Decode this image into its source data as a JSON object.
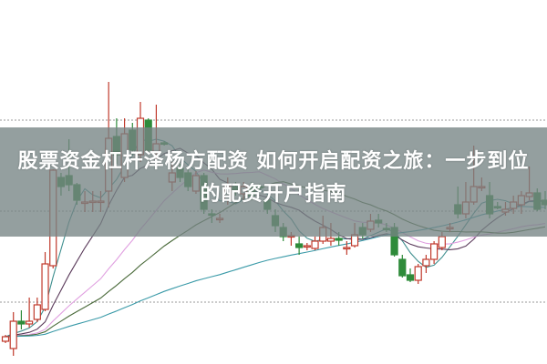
{
  "title": "股票资金杠杆泽杨方配资 如何开启配资之旅：一步到位的配资开户指南",
  "colors": {
    "up": "#c0392b",
    "down": "#2e8b3a",
    "grid": "#9a9a9a",
    "banner": "#768484"
  },
  "chart_data": {
    "type": "candlestick",
    "title": "",
    "xlabel": "",
    "ylabel": "",
    "grid": "horizontal dotted",
    "ylim": [
      0,
      40
    ],
    "moving_averages": [
      5,
      10,
      20,
      30,
      60
    ],
    "ma_colors": [
      "#3f8f8f",
      "#5a3a5a",
      "#e0a0e0",
      "#4a6a3a",
      "#3a9aa8"
    ],
    "candles": [
      [
        2.5,
        3.0,
        3.2,
        2.3
      ],
      [
        1.7,
        4.7,
        5.7,
        0.9
      ],
      [
        4.7,
        4.4,
        5.9,
        3.8
      ],
      [
        4.4,
        4.7,
        7.3,
        4.0
      ],
      [
        4.9,
        6.5,
        7.3,
        4.6
      ],
      [
        6.0,
        11.0,
        12.3,
        5.8
      ],
      [
        10.8,
        21.3,
        21.4,
        10.5
      ],
      [
        20.5,
        19.5,
        21.0,
        18.5
      ],
      [
        20.7,
        19.7,
        24.7,
        19.0
      ],
      [
        19.7,
        18.0,
        19.9,
        17.5
      ],
      [
        17.8,
        17.8,
        19.0,
        16.7
      ],
      [
        17.8,
        17.9,
        19.0,
        16.7
      ],
      [
        17.8,
        17.9,
        19.0,
        16.7
      ],
      [
        19.0,
        24.8,
        31.0,
        17.2
      ],
      [
        25.0,
        23.0,
        27.0,
        22.0
      ],
      [
        20.5,
        25.3,
        27.0,
        20.0
      ],
      [
        25.7,
        23.5,
        26.5,
        23.0
      ],
      [
        23.0,
        27.0,
        28.8,
        22.2
      ],
      [
        26.8,
        23.5,
        27.0,
        23.0
      ],
      [
        23.2,
        24.2,
        28.5,
        22.5
      ],
      [
        24.3,
        24.2,
        24.5,
        24.0
      ],
      [
        20.0,
        21.0,
        22.2,
        19.0
      ],
      [
        21.5,
        20.5,
        22.0,
        20.0
      ],
      [
        21.0,
        19.5,
        21.5,
        19.0
      ],
      [
        19.0,
        20.7,
        21.2,
        18.7
      ],
      [
        20.7,
        17.0,
        21.0,
        16.5
      ],
      [
        16.5,
        16.4,
        17.0,
        15.5
      ],
      [
        16.0,
        16.0,
        16.5,
        15.5
      ],
      [
        18.0,
        19.5,
        20.5,
        17.5
      ],
      [
        19.5,
        19.0,
        20.0,
        18.5
      ],
      [
        18.7,
        19.5,
        20.0,
        18.0
      ],
      [
        19.5,
        18.5,
        20.0,
        18.0
      ],
      [
        19.5,
        19.4,
        19.8,
        19.0
      ],
      [
        18.0,
        17.0,
        18.5,
        16.5
      ],
      [
        16.3,
        15.2,
        17.0,
        14.5
      ],
      [
        15.0,
        14.0,
        15.5,
        13.5
      ],
      [
        14.0,
        14.1,
        14.5,
        13.0
      ],
      [
        13.2,
        12.8,
        14.0,
        12.0
      ],
      [
        13.0,
        13.0,
        13.3,
        12.5
      ],
      [
        12.7,
        13.5,
        14.0,
        12.5
      ],
      [
        13.5,
        15.0,
        16.3,
        13.2
      ],
      [
        13.5,
        13.8,
        15.5,
        13.0
      ],
      [
        13.8,
        13.6,
        14.5,
        13.0
      ],
      [
        12.8,
        12.8,
        13.5,
        12.0
      ],
      [
        13.0,
        14.2,
        15.5,
        12.8
      ],
      [
        15.0,
        14.2,
        15.5,
        13.8
      ],
      [
        14.8,
        15.7,
        16.5,
        14.5
      ],
      [
        15.8,
        15.5,
        16.5,
        15.0
      ],
      [
        14.9,
        14.8,
        15.5,
        14.5
      ],
      [
        15.0,
        12.0,
        15.5,
        11.8
      ],
      [
        11.5,
        9.7,
        12.0,
        9.5
      ],
      [
        9.8,
        9.2,
        10.5,
        9.0
      ],
      [
        9.2,
        10.7,
        11.0,
        8.8
      ],
      [
        10.8,
        11.5,
        12.0,
        10.0
      ],
      [
        11.5,
        13.2,
        13.5,
        11.0
      ],
      [
        12.8,
        14.0,
        14.5,
        12.5
      ],
      [
        15.0,
        15.0,
        15.5,
        14.5
      ],
      [
        17.5,
        16.5,
        19.5,
        16.0
      ],
      [
        16.5,
        17.8,
        20.0,
        16.0
      ],
      [
        17.8,
        19.5,
        24.0,
        17.5
      ],
      [
        19.5,
        19.5,
        20.5,
        19.0
      ],
      [
        18.5,
        16.5,
        20.0,
        16.0
      ],
      [
        17.3,
        17.2,
        17.8,
        17.0
      ],
      [
        16.7,
        17.0,
        17.8,
        16.3
      ],
      [
        17.1,
        17.8,
        18.5,
        16.5
      ],
      [
        17.5,
        18.5,
        19.0,
        16.5
      ],
      [
        18.4,
        18.8,
        21.7,
        18.0
      ],
      [
        18.8,
        17.0,
        19.3,
        16.8
      ],
      [
        18.0,
        17.5,
        19.0,
        17.0
      ]
    ],
    "candle_fields": [
      "open",
      "close",
      "high",
      "low"
    ]
  }
}
